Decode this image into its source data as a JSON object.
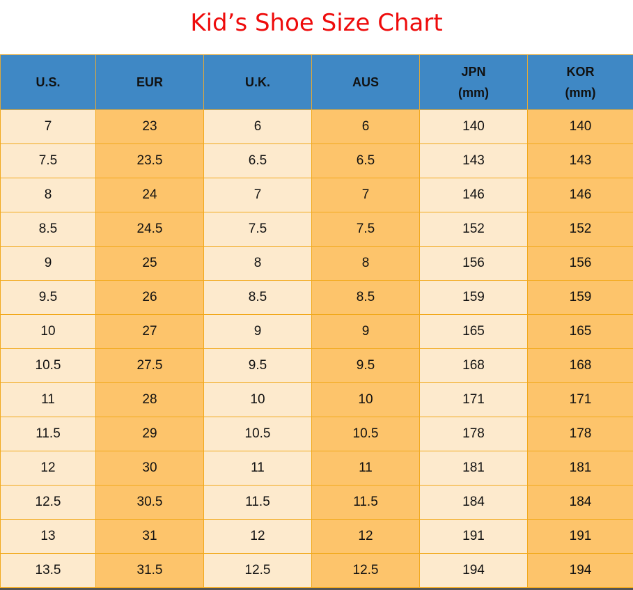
{
  "title": "Kid’s Shoe Size Chart",
  "colors": {
    "title": "#ee0b0b",
    "header": "#3f88c5",
    "light_column": "#fdeacd",
    "dark_column": "#fdc46b",
    "border": "#f2a91c"
  },
  "columns": [
    "U.S.",
    "EUR",
    "U.K.",
    "AUS",
    "JPN\n(mm)",
    "KOR\n(mm)"
  ],
  "rows": [
    [
      "7",
      "23",
      "6",
      "6",
      "140",
      "140"
    ],
    [
      "7.5",
      "23.5",
      "6.5",
      "6.5",
      "143",
      "143"
    ],
    [
      "8",
      "24",
      "7",
      "7",
      "146",
      "146"
    ],
    [
      "8.5",
      "24.5",
      "7.5",
      "7.5",
      "152",
      "152"
    ],
    [
      "9",
      "25",
      "8",
      "8",
      "156",
      "156"
    ],
    [
      "9.5",
      "26",
      "8.5",
      "8.5",
      "159",
      "159"
    ],
    [
      "10",
      "27",
      "9",
      "9",
      "165",
      "165"
    ],
    [
      "10.5",
      "27.5",
      "9.5",
      "9.5",
      "168",
      "168"
    ],
    [
      "11",
      "28",
      "10",
      "10",
      "171",
      "171"
    ],
    [
      "11.5",
      "29",
      "10.5",
      "10.5",
      "178",
      "178"
    ],
    [
      "12",
      "30",
      "11",
      "11",
      "181",
      "181"
    ],
    [
      "12.5",
      "30.5",
      "11.5",
      "11.5",
      "184",
      "184"
    ],
    [
      "13",
      "31",
      "12",
      "12",
      "191",
      "191"
    ],
    [
      "13.5",
      "31.5",
      "12.5",
      "12.5",
      "194",
      "194"
    ]
  ]
}
